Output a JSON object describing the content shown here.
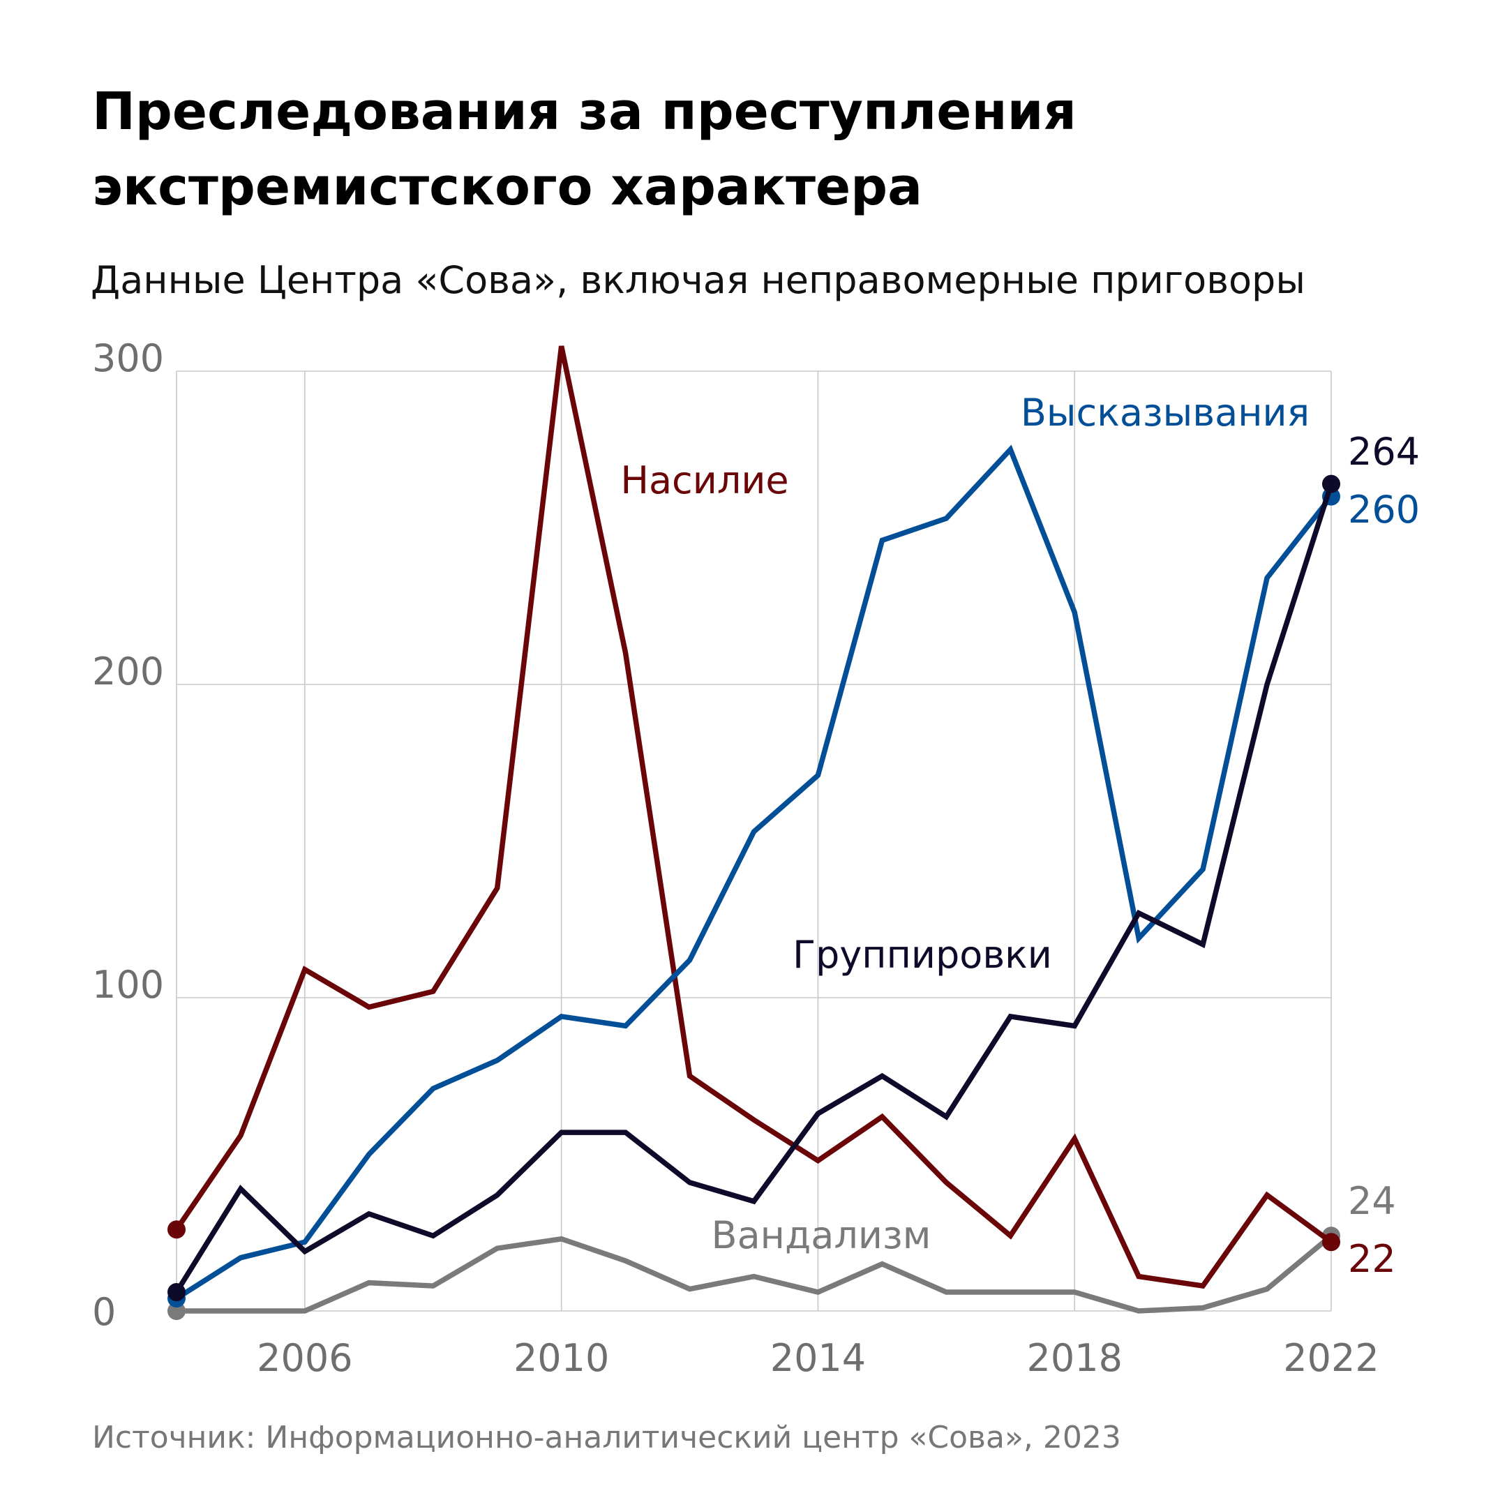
{
  "title_line1": "Преследования за преступления",
  "title_line2": "экстремистского характера",
  "subtitle": "Данные Центра «Сова», включая неправомерные приговоры",
  "source": "Источник: Информационно-аналитический центр «Сова», 2023",
  "chart_data": {
    "type": "line",
    "title": "Преследования за преступления экстремистского характера",
    "x": [
      2004,
      2005,
      2006,
      2007,
      2008,
      2009,
      2010,
      2011,
      2012,
      2013,
      2014,
      2015,
      2016,
      2017,
      2018,
      2019,
      2020,
      2021,
      2022
    ],
    "xticks": [
      "2006",
      "2010",
      "2014",
      "2018",
      "2022"
    ],
    "yticks": [
      "0",
      "100",
      "200",
      "300"
    ],
    "xlim": [
      2004,
      2022
    ],
    "ylim": [
      0,
      300
    ],
    "grid": true,
    "series": [
      {
        "name": "Насилие",
        "color": "#6a0508",
        "values": [
          26,
          56,
          109,
          97,
          102,
          135,
          308,
          210,
          75,
          61,
          48,
          62,
          41,
          24,
          55,
          11,
          8,
          37,
          22
        ],
        "end_label": "22"
      },
      {
        "name": "Высказывания",
        "color": "#024f98",
        "values": [
          4,
          17,
          22,
          50,
          71,
          80,
          94,
          91,
          112,
          153,
          171,
          246,
          253,
          275,
          223,
          119,
          141,
          234,
          260
        ],
        "end_label": "260"
      },
      {
        "name": "Группировки",
        "color": "#0d0a2a",
        "values": [
          6,
          39,
          19,
          31,
          24,
          37,
          57,
          57,
          41,
          35,
          63,
          75,
          62,
          94,
          91,
          127,
          117,
          200,
          264
        ],
        "end_label": "264"
      },
      {
        "name": "Вандализм",
        "color": "#7a7a7a",
        "values": [
          0,
          0,
          0,
          9,
          8,
          20,
          23,
          16,
          7,
          11,
          6,
          15,
          6,
          6,
          6,
          0,
          1,
          7,
          24
        ],
        "end_label": "24"
      }
    ]
  }
}
